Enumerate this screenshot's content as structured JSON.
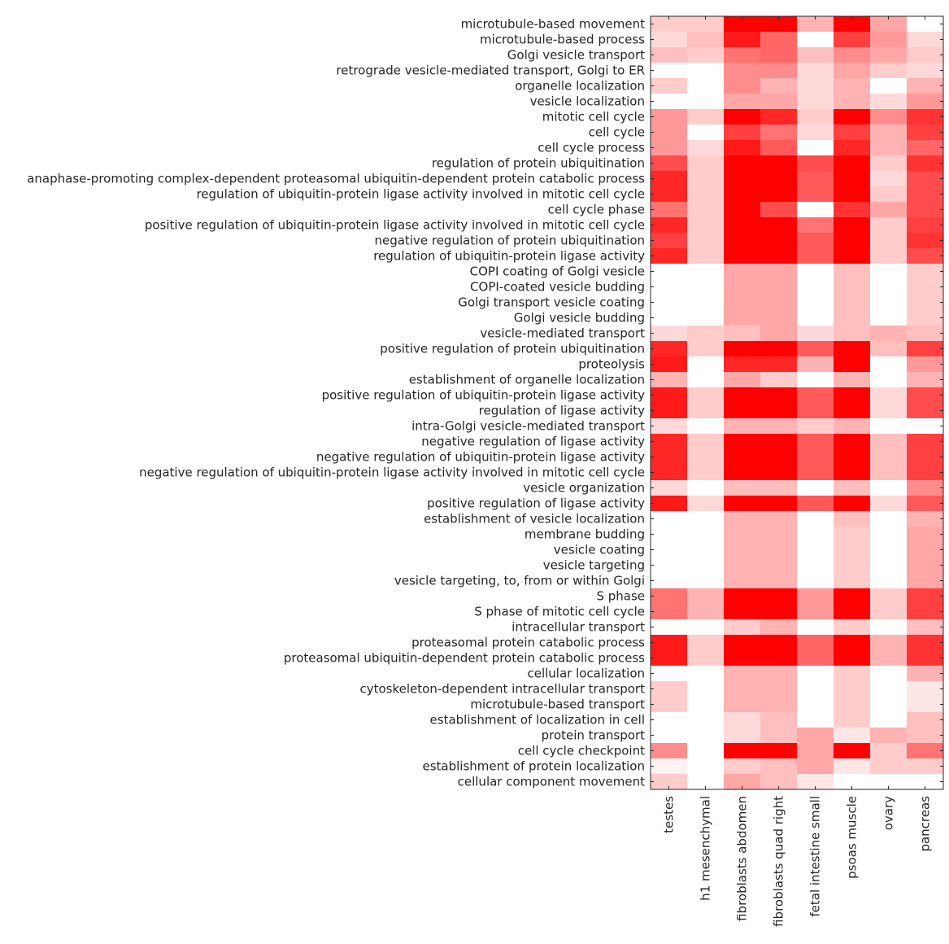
{
  "chart_data": {
    "type": "heatmap",
    "title": "",
    "xlabel": "",
    "ylabel": "",
    "colormap": {
      "low": "#ffffff",
      "high": "#ff0000"
    },
    "value_range": [
      0,
      1
    ],
    "columns": [
      "testes",
      "h1 mesenchymal",
      "fibroblasts abdomen",
      "fibroblasts quad right",
      "fetal intestine small",
      "psoas muscle",
      "ovary",
      "pancreas"
    ],
    "rows": [
      "microtubule-based movement",
      "microtubule-based process",
      "Golgi vesicle transport",
      "retrograde vesicle-mediated transport, Golgi to ER",
      "organelle localization",
      "vesicle localization",
      "mitotic cell cycle",
      "cell cycle",
      "cell cycle process",
      "regulation of protein ubiquitination",
      "anaphase-promoting complex-dependent proteasomal ubiquitin-dependent protein catabolic process",
      "regulation of ubiquitin-protein ligase activity involved in mitotic cell cycle",
      "cell cycle phase",
      "positive regulation of ubiquitin-protein ligase activity involved in mitotic cell cycle",
      "negative regulation of protein ubiquitination",
      "regulation of ubiquitin-protein ligase activity",
      "COPI coating of Golgi vesicle",
      "COPI-coated vesicle budding",
      "Golgi transport vesicle coating",
      "Golgi vesicle budding",
      "vesicle-mediated transport",
      "positive regulation of protein ubiquitination",
      "proteolysis",
      "establishment of organelle localization",
      "positive regulation of ubiquitin-protein ligase activity",
      "regulation of ligase activity",
      "intra-Golgi vesicle-mediated transport",
      "negative regulation of ligase activity",
      "negative regulation of ubiquitin-protein ligase activity",
      "negative regulation of ubiquitin-protein ligase activity involved in mitotic cell cycle",
      "vesicle organization",
      "positive regulation of ligase activity",
      "establishment of vesicle localization",
      "membrane budding",
      "vesicle coating",
      "vesicle targeting",
      "vesicle targeting, to, from or within Golgi",
      "S phase",
      "S phase of mitotic cell cycle",
      "intracellular transport",
      "proteasomal protein catabolic process",
      "proteasomal ubiquitin-dependent protein catabolic process",
      "cellular localization",
      "cytoskeleton-dependent intracellular transport",
      "microtubule-based transport",
      "establishment of localization in cell",
      "protein transport",
      "cell cycle checkpoint",
      "establishment of protein localization",
      "cellular component movement"
    ],
    "values": [
      [
        0.2,
        0.2,
        1,
        1,
        0.3,
        1,
        0.35,
        0
      ],
      [
        0.15,
        0.25,
        0.9,
        0.6,
        0,
        0.75,
        0.4,
        0.15
      ],
      [
        0.25,
        0.2,
        0.55,
        0.6,
        0.25,
        0.45,
        0.35,
        0.2
      ],
      [
        0,
        0,
        0.45,
        0.45,
        0.15,
        0.35,
        0.2,
        0.15
      ],
      [
        0.2,
        0,
        0.45,
        0.3,
        0.15,
        0.3,
        0,
        0.3
      ],
      [
        0,
        0,
        0.35,
        0.35,
        0.15,
        0.3,
        0.15,
        0.4
      ],
      [
        0.4,
        0.2,
        1,
        0.85,
        0.2,
        1,
        0.45,
        0.8
      ],
      [
        0.4,
        0,
        0.75,
        0.55,
        0.15,
        0.75,
        0.3,
        0.75
      ],
      [
        0.4,
        0.15,
        0.9,
        0.65,
        0,
        0.85,
        0.3,
        0.6
      ],
      [
        0.7,
        0.2,
        1,
        1,
        0.7,
        1,
        0.2,
        0.8
      ],
      [
        0.85,
        0.2,
        1,
        1,
        0.65,
        1,
        0.15,
        0.7
      ],
      [
        0.85,
        0.2,
        1,
        1,
        0.65,
        1,
        0.2,
        0.7
      ],
      [
        0.55,
        0.2,
        1,
        0.7,
        0,
        0.8,
        0.35,
        0.7
      ],
      [
        0.85,
        0.2,
        1,
        1,
        0.55,
        1,
        0.2,
        0.75
      ],
      [
        0.75,
        0.2,
        1,
        1,
        0.65,
        1,
        0.2,
        0.8
      ],
      [
        0.85,
        0.2,
        1,
        1,
        0.65,
        1,
        0.2,
        0.7
      ],
      [
        0,
        0,
        0.35,
        0.35,
        0,
        0.25,
        0,
        0.2
      ],
      [
        0,
        0,
        0.35,
        0.35,
        0,
        0.25,
        0,
        0.2
      ],
      [
        0,
        0,
        0.35,
        0.35,
        0,
        0.25,
        0,
        0.2
      ],
      [
        0,
        0,
        0.35,
        0.35,
        0,
        0.25,
        0,
        0.2
      ],
      [
        0.15,
        0.2,
        0.25,
        0.35,
        0.15,
        0.25,
        0.3,
        0.25
      ],
      [
        0.85,
        0.2,
        1,
        1,
        0.65,
        1,
        0.25,
        0.75
      ],
      [
        0.9,
        0,
        0.85,
        0.85,
        0.3,
        1,
        0,
        0.4
      ],
      [
        0.3,
        0,
        0.35,
        0.2,
        0,
        0.3,
        0,
        0.3
      ],
      [
        0.9,
        0.2,
        1,
        1,
        0.65,
        1,
        0.15,
        0.7
      ],
      [
        0.9,
        0.2,
        1,
        1,
        0.65,
        1,
        0.15,
        0.7
      ],
      [
        0.15,
        0,
        0.3,
        0.3,
        0.2,
        0.3,
        0,
        0
      ],
      [
        0.85,
        0.2,
        1,
        1,
        0.65,
        1,
        0.25,
        0.75
      ],
      [
        0.85,
        0.2,
        1,
        1,
        0.65,
        1,
        0.25,
        0.75
      ],
      [
        0.85,
        0.2,
        1,
        1,
        0.65,
        1,
        0.25,
        0.75
      ],
      [
        0.15,
        0,
        0.25,
        0.25,
        0,
        0.25,
        0,
        0.45
      ],
      [
        0.9,
        0.15,
        1,
        1,
        0.65,
        1,
        0.15,
        0.65
      ],
      [
        0,
        0,
        0.3,
        0.3,
        0,
        0.25,
        0,
        0.3
      ],
      [
        0,
        0,
        0.3,
        0.3,
        0,
        0.2,
        0,
        0.35
      ],
      [
        0,
        0,
        0.3,
        0.3,
        0,
        0.2,
        0,
        0.35
      ],
      [
        0,
        0,
        0.3,
        0.3,
        0,
        0.2,
        0,
        0.35
      ],
      [
        0,
        0,
        0.3,
        0.3,
        0,
        0.2,
        0,
        0.35
      ],
      [
        0.55,
        0.3,
        1,
        1,
        0.4,
        1,
        0.2,
        0.75
      ],
      [
        0.55,
        0.3,
        1,
        1,
        0.4,
        1,
        0.2,
        0.75
      ],
      [
        0,
        0,
        0.2,
        0.3,
        0,
        0.2,
        0,
        0.25
      ],
      [
        0.9,
        0.2,
        1,
        1,
        0.6,
        1,
        0.3,
        0.8
      ],
      [
        0.9,
        0.2,
        1,
        1,
        0.6,
        1,
        0.3,
        0.8
      ],
      [
        0,
        0,
        0.3,
        0.3,
        0,
        0.2,
        0,
        0.3
      ],
      [
        0.2,
        0,
        0.3,
        0.3,
        0,
        0.2,
        0,
        0.1
      ],
      [
        0.2,
        0,
        0.3,
        0.3,
        0,
        0.2,
        0,
        0.1
      ],
      [
        0,
        0,
        0.15,
        0.25,
        0,
        0.2,
        0,
        0.25
      ],
      [
        0,
        0,
        0.15,
        0.25,
        0.35,
        0.1,
        0.3,
        0.25
      ],
      [
        0.45,
        0,
        1,
        1,
        0.35,
        1,
        0.2,
        0.55
      ],
      [
        0.05,
        0,
        0.2,
        0.25,
        0.35,
        0.1,
        0.2,
        0.2
      ],
      [
        0.2,
        0,
        0.35,
        0.25,
        0.1,
        0,
        0,
        0
      ]
    ]
  }
}
